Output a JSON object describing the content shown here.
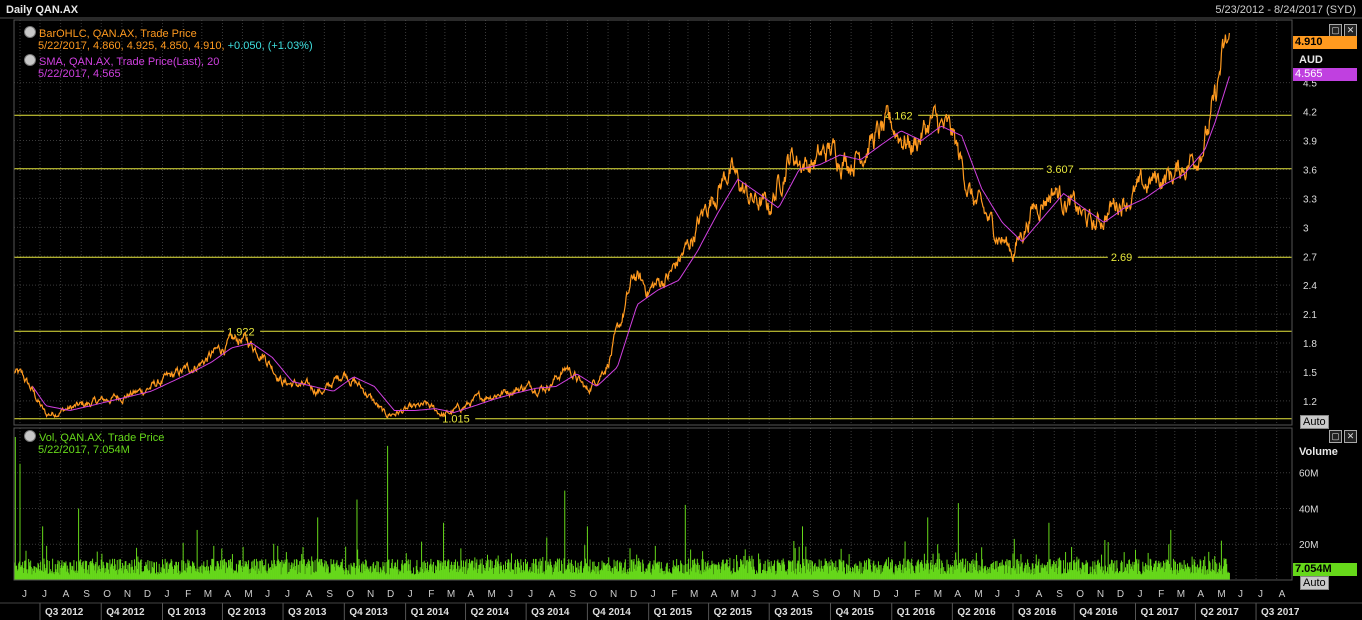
{
  "header": {
    "title": "Daily QAN.AX",
    "date_range": "5/23/2012 - 8/24/2017 (SYD)"
  },
  "legend": {
    "ohlc_label": "BarOHLC, QAN.AX, Trade Price",
    "ohlc_values": "5/22/2017, 4.860, 4.925, 4.850, 4.910,",
    "ohlc_change": "+0.050, (+1.03%)",
    "sma_label": "SMA, QAN.AX, Trade Price(Last),  20",
    "sma_values": "5/22/2017, 4.565",
    "vol_label": "Vol, QAN.AX, Trade Price",
    "vol_values": "5/22/2017, 7.054M"
  },
  "axis": {
    "price_unit": "AUD",
    "volume_unit": "Volume",
    "auto_label": "Auto",
    "last_price_tag": "4.910",
    "sma_tag": "4.565",
    "volume_tag": "7.054M"
  },
  "colors": {
    "price": "#ff9a1f",
    "sma": "#d040e0",
    "volume": "#66d81a",
    "levels": "#e6e63c",
    "grid": "#3a3a3a"
  },
  "chart_data": [
    {
      "type": "line",
      "ylim": [
        0.95,
        5.15
      ],
      "y_ticks": [
        1.2,
        1.5,
        1.8,
        2.1,
        2.4,
        2.7,
        3,
        3.3,
        3.6,
        3.9,
        4.2,
        4.5
      ],
      "x_range": [
        "2012-05-23",
        "2017-08-24"
      ],
      "month_labels": [
        {
          "date": "2012-06-01",
          "label": "J"
        },
        {
          "date": "2012-07-01",
          "label": "J"
        },
        {
          "date": "2012-08-01",
          "label": "A"
        },
        {
          "date": "2012-09-01",
          "label": "S"
        },
        {
          "date": "2012-10-01",
          "label": "O"
        },
        {
          "date": "2012-11-01",
          "label": "N"
        },
        {
          "date": "2012-12-01",
          "label": "D"
        },
        {
          "date": "2013-01-01",
          "label": "J"
        },
        {
          "date": "2013-02-01",
          "label": "F"
        },
        {
          "date": "2013-03-01",
          "label": "M"
        },
        {
          "date": "2013-04-01",
          "label": "A"
        },
        {
          "date": "2013-05-01",
          "label": "M"
        },
        {
          "date": "2013-06-01",
          "label": "J"
        },
        {
          "date": "2013-07-01",
          "label": "J"
        },
        {
          "date": "2013-08-01",
          "label": "A"
        },
        {
          "date": "2013-09-01",
          "label": "S"
        },
        {
          "date": "2013-10-01",
          "label": "O"
        },
        {
          "date": "2013-11-01",
          "label": "N"
        },
        {
          "date": "2013-12-01",
          "label": "D"
        },
        {
          "date": "2014-01-01",
          "label": "J"
        },
        {
          "date": "2014-02-01",
          "label": "F"
        },
        {
          "date": "2014-03-01",
          "label": "M"
        },
        {
          "date": "2014-04-01",
          "label": "A"
        },
        {
          "date": "2014-05-01",
          "label": "M"
        },
        {
          "date": "2014-06-01",
          "label": "J"
        },
        {
          "date": "2014-07-01",
          "label": "J"
        },
        {
          "date": "2014-08-01",
          "label": "A"
        },
        {
          "date": "2014-09-01",
          "label": "S"
        },
        {
          "date": "2014-10-01",
          "label": "O"
        },
        {
          "date": "2014-11-01",
          "label": "N"
        },
        {
          "date": "2014-12-01",
          "label": "D"
        },
        {
          "date": "2015-01-01",
          "label": "J"
        },
        {
          "date": "2015-02-01",
          "label": "F"
        },
        {
          "date": "2015-03-01",
          "label": "M"
        },
        {
          "date": "2015-04-01",
          "label": "A"
        },
        {
          "date": "2015-05-01",
          "label": "M"
        },
        {
          "date": "2015-06-01",
          "label": "J"
        },
        {
          "date": "2015-07-01",
          "label": "J"
        },
        {
          "date": "2015-08-01",
          "label": "A"
        },
        {
          "date": "2015-09-01",
          "label": "S"
        },
        {
          "date": "2015-10-01",
          "label": "O"
        },
        {
          "date": "2015-11-01",
          "label": "N"
        },
        {
          "date": "2015-12-01",
          "label": "D"
        },
        {
          "date": "2016-01-01",
          "label": "J"
        },
        {
          "date": "2016-02-01",
          "label": "F"
        },
        {
          "date": "2016-03-01",
          "label": "M"
        },
        {
          "date": "2016-04-01",
          "label": "A"
        },
        {
          "date": "2016-05-01",
          "label": "M"
        },
        {
          "date": "2016-06-01",
          "label": "J"
        },
        {
          "date": "2016-07-01",
          "label": "J"
        },
        {
          "date": "2016-08-01",
          "label": "A"
        },
        {
          "date": "2016-09-01",
          "label": "S"
        },
        {
          "date": "2016-10-01",
          "label": "O"
        },
        {
          "date": "2016-11-01",
          "label": "N"
        },
        {
          "date": "2016-12-01",
          "label": "D"
        },
        {
          "date": "2017-01-01",
          "label": "J"
        },
        {
          "date": "2017-02-01",
          "label": "F"
        },
        {
          "date": "2017-03-01",
          "label": "M"
        },
        {
          "date": "2017-04-01",
          "label": "A"
        },
        {
          "date": "2017-05-01",
          "label": "M"
        },
        {
          "date": "2017-06-01",
          "label": "J"
        },
        {
          "date": "2017-07-01",
          "label": "J"
        },
        {
          "date": "2017-08-01",
          "label": "A"
        }
      ],
      "quarter_labels": [
        {
          "date": "2012-07-01",
          "label": "Q3 2012"
        },
        {
          "date": "2012-10-01",
          "label": "Q4 2012"
        },
        {
          "date": "2013-01-01",
          "label": "Q1 2013"
        },
        {
          "date": "2013-04-01",
          "label": "Q2 2013"
        },
        {
          "date": "2013-07-01",
          "label": "Q3 2013"
        },
        {
          "date": "2013-10-01",
          "label": "Q4 2013"
        },
        {
          "date": "2014-01-01",
          "label": "Q1 2014"
        },
        {
          "date": "2014-04-01",
          "label": "Q2 2014"
        },
        {
          "date": "2014-07-01",
          "label": "Q3 2014"
        },
        {
          "date": "2014-10-01",
          "label": "Q4 2014"
        },
        {
          "date": "2015-01-01",
          "label": "Q1 2015"
        },
        {
          "date": "2015-04-01",
          "label": "Q2 2015"
        },
        {
          "date": "2015-07-01",
          "label": "Q3 2015"
        },
        {
          "date": "2015-10-01",
          "label": "Q4 2015"
        },
        {
          "date": "2016-01-01",
          "label": "Q1 2016"
        },
        {
          "date": "2016-04-01",
          "label": "Q2 2016"
        },
        {
          "date": "2016-07-01",
          "label": "Q3 2016"
        },
        {
          "date": "2016-10-01",
          "label": "Q4 2016"
        },
        {
          "date": "2017-01-01",
          "label": "Q1 2017"
        },
        {
          "date": "2017-04-01",
          "label": "Q2 2017"
        },
        {
          "date": "2017-07-01",
          "label": "Q3 2017"
        }
      ],
      "levels": [
        {
          "value": 4.162,
          "label": "4.162",
          "label_date": "2015-12-22"
        },
        {
          "value": 3.607,
          "label": "3.607",
          "label_date": "2016-08-20"
        },
        {
          "value": 2.69,
          "label": "2.69",
          "label_date": "2016-11-25"
        },
        {
          "value": 1.922,
          "label": "1.922",
          "label_date": "2013-04-08"
        },
        {
          "value": 1.015,
          "label": "1.015",
          "label_date": "2014-02-25"
        }
      ],
      "series": [
        {
          "name": "BarOHLC, QAN.AX, Trade Price",
          "dates": [
            "2012-05-23",
            "2012-06-05",
            "2012-06-20",
            "2012-07-10",
            "2012-08-01",
            "2012-09-01",
            "2012-10-01",
            "2012-11-01",
            "2012-12-01",
            "2013-01-15",
            "2013-03-01",
            "2013-04-01",
            "2013-05-01",
            "2013-06-01",
            "2013-07-01",
            "2013-08-01",
            "2013-09-01",
            "2013-10-01",
            "2013-11-01",
            "2013-12-01",
            "2014-01-01",
            "2014-02-01",
            "2014-03-01",
            "2014-04-01",
            "2014-05-01",
            "2014-06-01",
            "2014-07-01",
            "2014-08-01",
            "2014-09-01",
            "2014-10-01",
            "2014-11-01",
            "2014-11-20",
            "2014-12-10",
            "2015-01-01",
            "2015-02-01",
            "2015-03-01",
            "2015-04-01",
            "2015-05-01",
            "2015-06-01",
            "2015-07-01",
            "2015-08-01",
            "2015-09-01",
            "2015-10-01",
            "2015-11-01",
            "2015-12-01",
            "2016-01-01",
            "2016-02-01",
            "2016-03-01",
            "2016-04-01",
            "2016-05-01",
            "2016-06-01",
            "2016-07-01",
            "2016-08-01",
            "2016-09-01",
            "2016-10-01",
            "2016-11-01",
            "2016-12-01",
            "2017-01-01",
            "2017-02-01",
            "2017-03-01",
            "2017-04-01",
            "2017-04-20",
            "2017-05-01",
            "2017-05-10",
            "2017-05-22"
          ],
          "values": [
            1.5,
            1.45,
            1.3,
            1.05,
            1.1,
            1.15,
            1.2,
            1.25,
            1.3,
            1.45,
            1.6,
            1.75,
            1.85,
            1.7,
            1.4,
            1.35,
            1.3,
            1.5,
            1.3,
            1.05,
            1.1,
            1.15,
            1.05,
            1.15,
            1.25,
            1.3,
            1.35,
            1.35,
            1.55,
            1.3,
            1.6,
            2.0,
            2.5,
            2.35,
            2.5,
            2.8,
            3.25,
            3.6,
            3.3,
            3.2,
            3.75,
            3.65,
            3.8,
            3.7,
            3.9,
            4.05,
            3.85,
            4.1,
            3.95,
            3.3,
            3.0,
            2.75,
            3.2,
            3.4,
            3.2,
            3.0,
            3.25,
            3.35,
            3.5,
            3.55,
            3.75,
            4.0,
            4.3,
            4.7,
            4.91
          ]
        },
        {
          "name": "SMA, QAN.AX, Trade Price(Last),  20",
          "dates": [
            "2012-06-20",
            "2012-07-10",
            "2012-08-15",
            "2012-09-15",
            "2012-10-15",
            "2012-11-15",
            "2012-12-15",
            "2013-01-15",
            "2013-02-15",
            "2013-03-15",
            "2013-04-15",
            "2013-05-15",
            "2013-06-15",
            "2013-07-15",
            "2013-08-15",
            "2013-09-15",
            "2013-10-15",
            "2013-11-15",
            "2013-12-15",
            "2014-01-15",
            "2014-02-15",
            "2014-03-15",
            "2014-04-15",
            "2014-05-15",
            "2014-06-15",
            "2014-07-15",
            "2014-08-15",
            "2014-09-15",
            "2014-10-15",
            "2014-11-15",
            "2014-12-15",
            "2015-01-15",
            "2015-02-15",
            "2015-03-15",
            "2015-04-15",
            "2015-05-15",
            "2015-06-15",
            "2015-07-15",
            "2015-08-15",
            "2015-09-15",
            "2015-10-15",
            "2015-11-15",
            "2015-12-15",
            "2016-01-15",
            "2016-02-15",
            "2016-03-15",
            "2016-04-15",
            "2016-05-15",
            "2016-06-15",
            "2016-07-15",
            "2016-08-15",
            "2016-09-15",
            "2016-10-15",
            "2016-11-15",
            "2016-12-15",
            "2017-01-15",
            "2017-02-15",
            "2017-03-15",
            "2017-04-15",
            "2017-05-01",
            "2017-05-22"
          ],
          "values": [
            1.35,
            1.15,
            1.1,
            1.15,
            1.2,
            1.25,
            1.3,
            1.4,
            1.5,
            1.6,
            1.75,
            1.8,
            1.65,
            1.4,
            1.35,
            1.3,
            1.45,
            1.35,
            1.1,
            1.1,
            1.12,
            1.08,
            1.15,
            1.22,
            1.28,
            1.33,
            1.35,
            1.48,
            1.35,
            1.55,
            2.2,
            2.35,
            2.45,
            2.75,
            3.15,
            3.5,
            3.35,
            3.2,
            3.6,
            3.65,
            3.75,
            3.7,
            3.85,
            4.0,
            3.9,
            4.05,
            3.95,
            3.4,
            3.05,
            2.85,
            3.1,
            3.35,
            3.2,
            3.05,
            3.2,
            3.3,
            3.45,
            3.55,
            3.8,
            4.1,
            4.565
          ]
        }
      ]
    },
    {
      "type": "bar",
      "name": "Vol, QAN.AX, Trade Price",
      "ylim": [
        0,
        85
      ],
      "y_unit": "M",
      "y_ticks": [
        {
          "value": 20,
          "label": "20M"
        },
        {
          "value": 40,
          "label": "40M"
        },
        {
          "value": 60,
          "label": "60M"
        }
      ],
      "spikes": [
        {
          "date": "2012-05-25",
          "value": 80
        },
        {
          "date": "2012-06-01",
          "value": 65
        },
        {
          "date": "2012-07-05",
          "value": 30
        },
        {
          "date": "2012-08-28",
          "value": 40
        },
        {
          "date": "2013-02-22",
          "value": 28
        },
        {
          "date": "2013-08-22",
          "value": 35
        },
        {
          "date": "2013-10-20",
          "value": 45
        },
        {
          "date": "2013-12-05",
          "value": 75
        },
        {
          "date": "2014-02-27",
          "value": 32
        },
        {
          "date": "2014-08-28",
          "value": 50
        },
        {
          "date": "2014-10-01",
          "value": 30
        },
        {
          "date": "2015-02-25",
          "value": 42
        },
        {
          "date": "2015-08-20",
          "value": 30
        },
        {
          "date": "2016-02-24",
          "value": 35
        },
        {
          "date": "2016-04-10",
          "value": 43
        },
        {
          "date": "2016-08-24",
          "value": 32
        },
        {
          "date": "2017-02-23",
          "value": 28
        },
        {
          "date": "2017-05-10",
          "value": 22
        }
      ],
      "typical_range": [
        3,
        12
      ]
    }
  ]
}
